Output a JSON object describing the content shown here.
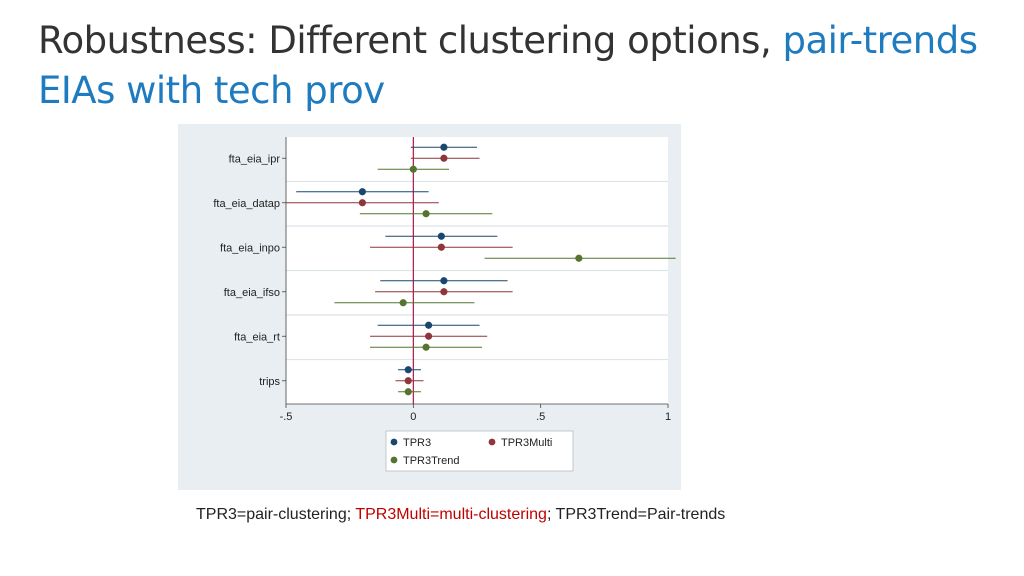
{
  "slide": {
    "title_part1": "Robustness: Different clustering options, ",
    "title_part2": "pair-trends EIAs with tech prov",
    "caption_part1": "TPR3=pair-clustering; ",
    "caption_part2": "TPR3Multi=multi-clustering",
    "caption_part3": "; TPR3Trend=Pair-trends",
    "accent_color": "#1f7bc0",
    "caption_highlight_color": "#c00000"
  },
  "chart_data": {
    "type": "scatter",
    "subtype": "coefficient-plot",
    "categories": [
      "fta_eia_ipr",
      "fta_eia_datap",
      "fta_eia_inpo",
      "fta_eia_ifso",
      "fta_eia_rt",
      "trips"
    ],
    "xlim": [
      -0.5,
      1.0
    ],
    "xticks": [
      -0.5,
      0,
      0.5,
      1
    ],
    "xtick_labels": [
      "-.5",
      "0",
      ".5",
      "1"
    ],
    "reference_line_x": 0,
    "grid": true,
    "legend_position": "bottom",
    "series": [
      {
        "name": "TPR3",
        "color": "#1a476f",
        "estimates": [
          0.12,
          -0.2,
          0.11,
          0.12,
          0.06,
          -0.02
        ],
        "ci_low": [
          -0.01,
          -0.46,
          -0.11,
          -0.13,
          -0.14,
          -0.06
        ],
        "ci_high": [
          0.25,
          0.06,
          0.33,
          0.37,
          0.26,
          0.03
        ]
      },
      {
        "name": "TPR3Multi",
        "color": "#90353b",
        "estimates": [
          0.12,
          -0.2,
          0.11,
          0.12,
          0.06,
          -0.02
        ],
        "ci_low": [
          -0.01,
          -0.5,
          -0.17,
          -0.15,
          -0.17,
          -0.07
        ],
        "ci_high": [
          0.26,
          0.1,
          0.39,
          0.39,
          0.29,
          0.04
        ]
      },
      {
        "name": "TPR3Trend",
        "color": "#55752f",
        "estimates": [
          0.0,
          0.05,
          0.65,
          -0.04,
          0.05,
          -0.02
        ],
        "ci_low": [
          -0.14,
          -0.21,
          0.28,
          -0.31,
          -0.17,
          -0.06
        ],
        "ci_high": [
          0.14,
          0.31,
          1.03,
          0.24,
          0.27,
          0.03
        ]
      }
    ]
  }
}
